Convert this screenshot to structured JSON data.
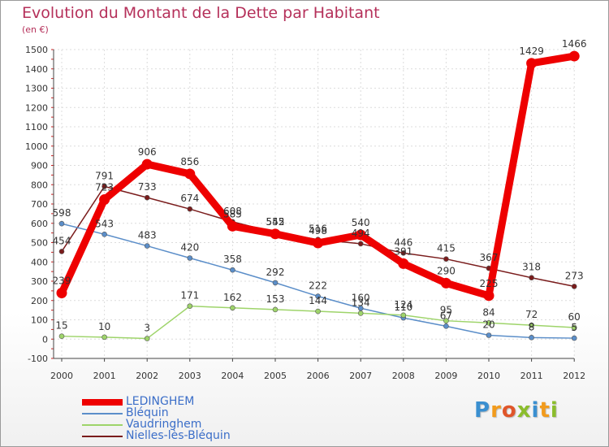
{
  "header": {
    "title": "Evolution du Montant de la Dette par Habitant",
    "subtitle": "(en €)"
  },
  "logo": {
    "text": "Proxiti",
    "letters": [
      "P",
      "r",
      "o",
      "x",
      "i",
      "t",
      "i"
    ],
    "colors": [
      "#3a8fd0",
      "#f29b1c",
      "#e0562a",
      "#8bbd2c",
      "#3a8fd0",
      "#f29b1c",
      "#8bbd2c"
    ]
  },
  "chart_data": {
    "type": "line",
    "x": [
      "2000",
      "2001",
      "2002",
      "2003",
      "2004",
      "2005",
      "2006",
      "2007",
      "2008",
      "2009",
      "2010",
      "2011",
      "2012"
    ],
    "ylim": [
      -100,
      1500
    ],
    "yticks": [
      "-100",
      "0",
      "100",
      "200",
      "300",
      "400",
      "500",
      "600",
      "700",
      "800",
      "900",
      "1000",
      "1100",
      "1200",
      "1300",
      "1400",
      "1500"
    ],
    "grid": true,
    "legend_position": "bottom-left",
    "series": [
      {
        "name": "Nielles-lès-Bléquin",
        "color": "#7a1c1c",
        "values": [
          454,
          791,
          733,
          674,
          608,
          552,
          516,
          494,
          446,
          415,
          367,
          318,
          273
        ],
        "labels": [
          "454",
          "791",
          "733",
          "674",
          "608",
          "552",
          "516",
          "494",
          "446",
          "415",
          "367",
          "318",
          "273"
        ]
      },
      {
        "name": "Bléquin",
        "color": "#5b8ec9",
        "values": [
          598,
          543,
          483,
          420,
          358,
          292,
          222,
          160,
          110,
          67,
          20,
          8,
          5
        ],
        "labels": [
          "598",
          "543",
          "483",
          "420",
          "358",
          "292",
          "222",
          "160",
          "110",
          "67",
          "20",
          "8",
          "5"
        ]
      },
      {
        "name": "Vaudringhem",
        "color": "#9ed46a",
        "values": [
          15,
          10,
          3,
          171,
          162,
          153,
          144,
          134,
          124,
          95,
          84,
          72,
          60
        ],
        "labels": [
          "15",
          "10",
          "3",
          "171",
          "162",
          "153",
          "144",
          "134",
          "124",
          "95",
          "84",
          "72",
          "60"
        ]
      },
      {
        "name": "LEDINGHEM",
        "color": "#ee0000",
        "values": [
          239,
          723,
          906,
          856,
          585,
          545,
          498,
          540,
          391,
          290,
          225,
          1429,
          1466
        ],
        "labels": [
          "239",
          "723",
          "906",
          "856",
          "585",
          "545",
          "498",
          "540",
          "391",
          "290",
          "225",
          "1429",
          "1466"
        ]
      }
    ]
  }
}
